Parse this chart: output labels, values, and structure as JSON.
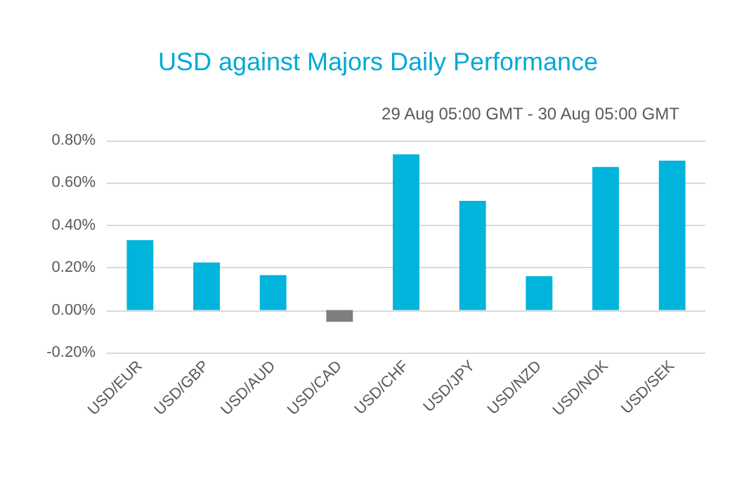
{
  "chart_data": {
    "type": "bar",
    "title": "USD against Majors Daily Performance",
    "subtitle": "29 Aug 05:00 GMT - 30 Aug 05:00 GMT",
    "categories": [
      "USD/EUR",
      "USD/GBP",
      "USD/AUD",
      "USD/CAD",
      "USD/CHF",
      "USD/JPY",
      "USD/NZD",
      "USD/NOK",
      "USD/SEK"
    ],
    "values": [
      0.33,
      0.225,
      0.165,
      -0.055,
      0.735,
      0.515,
      0.16,
      0.675,
      0.705
    ],
    "colors": [
      "#00b4dc",
      "#00b4dc",
      "#00b4dc",
      "#7f7f7f",
      "#00b4dc",
      "#00b4dc",
      "#00b4dc",
      "#00b4dc",
      "#00b4dc"
    ],
    "ylim": [
      -0.2,
      0.8
    ],
    "yticks": [
      {
        "value": -0.2,
        "label": "-0.20%"
      },
      {
        "value": 0,
        "label": "0.00%"
      },
      {
        "value": 0.2,
        "label": "0.20%"
      },
      {
        "value": 0.4,
        "label": "0.40%"
      },
      {
        "value": 0.6,
        "label": "0.60%"
      },
      {
        "value": 0.8,
        "label": "0.80%"
      }
    ],
    "grid": "y"
  }
}
